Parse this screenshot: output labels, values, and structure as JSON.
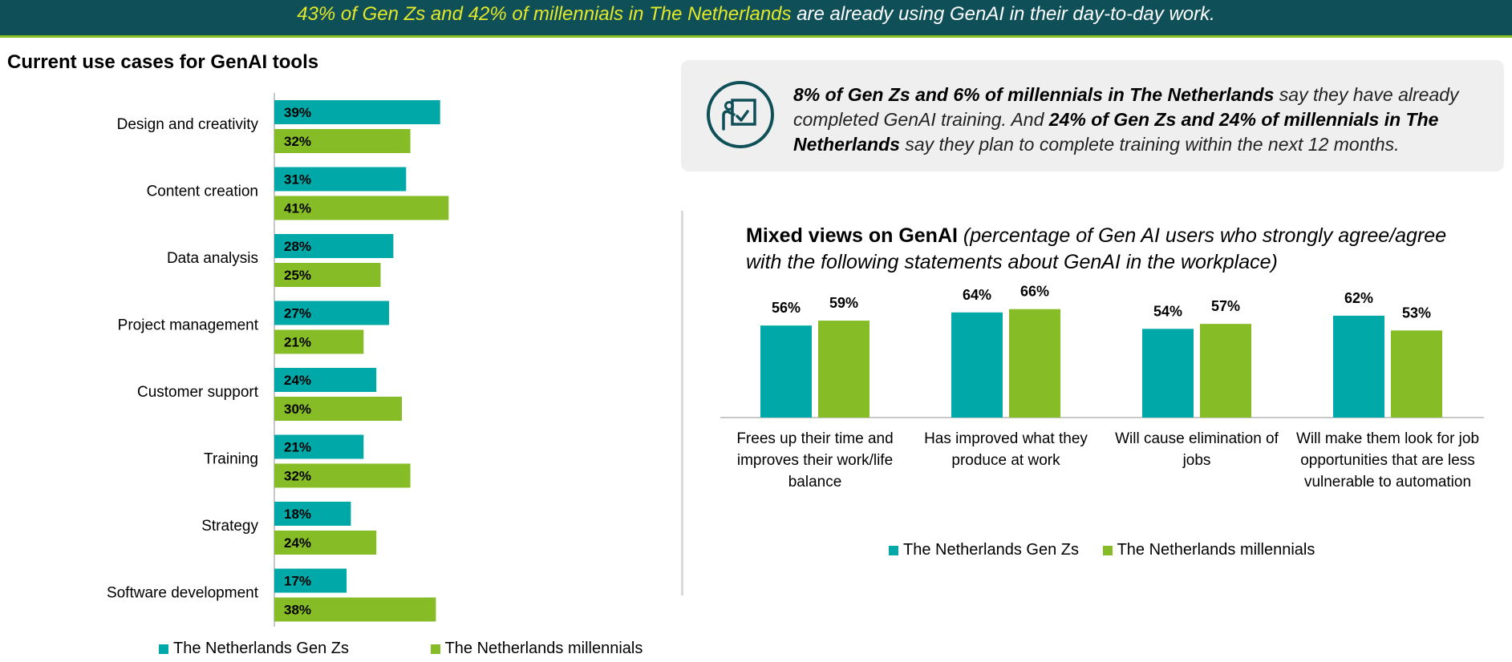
{
  "banner": {
    "highlight": "43% of Gen Zs and 42% of millennials in The Netherlands",
    "rest": " are already using GenAI in their day-to-day work."
  },
  "colors": {
    "genz": "#00a8a8",
    "millennials": "#86bc25",
    "banner_bg": "#0f4f57",
    "banner_highlight": "#e3e82a"
  },
  "callout": {
    "icon": "presentation-board-check-icon",
    "p1_bold": "8% of Gen Zs and 6% of millennials in The Netherlands",
    "p2": " say they have already completed GenAI training. And ",
    "p3_bold": "24% of Gen Zs and 24% of millennials in The Netherlands",
    "p4": " say they plan to complete training within the next 12 months."
  },
  "chart_data": [
    {
      "type": "bar",
      "orientation": "horizontal",
      "title": "Current use cases for GenAI tools",
      "categories": [
        "Design and creativity",
        "Content creation",
        "Data analysis",
        "Project management",
        "Customer support",
        "Training",
        "Strategy",
        "Software development"
      ],
      "series": [
        {
          "name": "The Netherlands Gen Zs",
          "values": [
            39,
            31,
            28,
            27,
            24,
            21,
            18,
            17
          ]
        },
        {
          "name": "The Netherlands millennials",
          "values": [
            32,
            41,
            25,
            21,
            30,
            32,
            24,
            38
          ]
        }
      ],
      "value_suffix": "%",
      "legend": "bottom"
    },
    {
      "type": "bar",
      "orientation": "vertical",
      "title_bold": "Mixed views on GenAI",
      "title_italic": " (percentage of Gen AI users who strongly agree/agree with the following statements about GenAI in the workplace)",
      "categories": [
        "Frees up their time and improves their work/life balance",
        "Has improved what they produce at work",
        "Will cause elimination of jobs",
        "Will make them look for job opportunities that are less vulnerable to automation"
      ],
      "series": [
        {
          "name": "The Netherlands Gen Zs",
          "values": [
            56,
            64,
            54,
            62
          ]
        },
        {
          "name": "The Netherlands millennials",
          "values": [
            59,
            66,
            57,
            53
          ]
        }
      ],
      "value_suffix": "%",
      "legend": "bottom"
    }
  ]
}
